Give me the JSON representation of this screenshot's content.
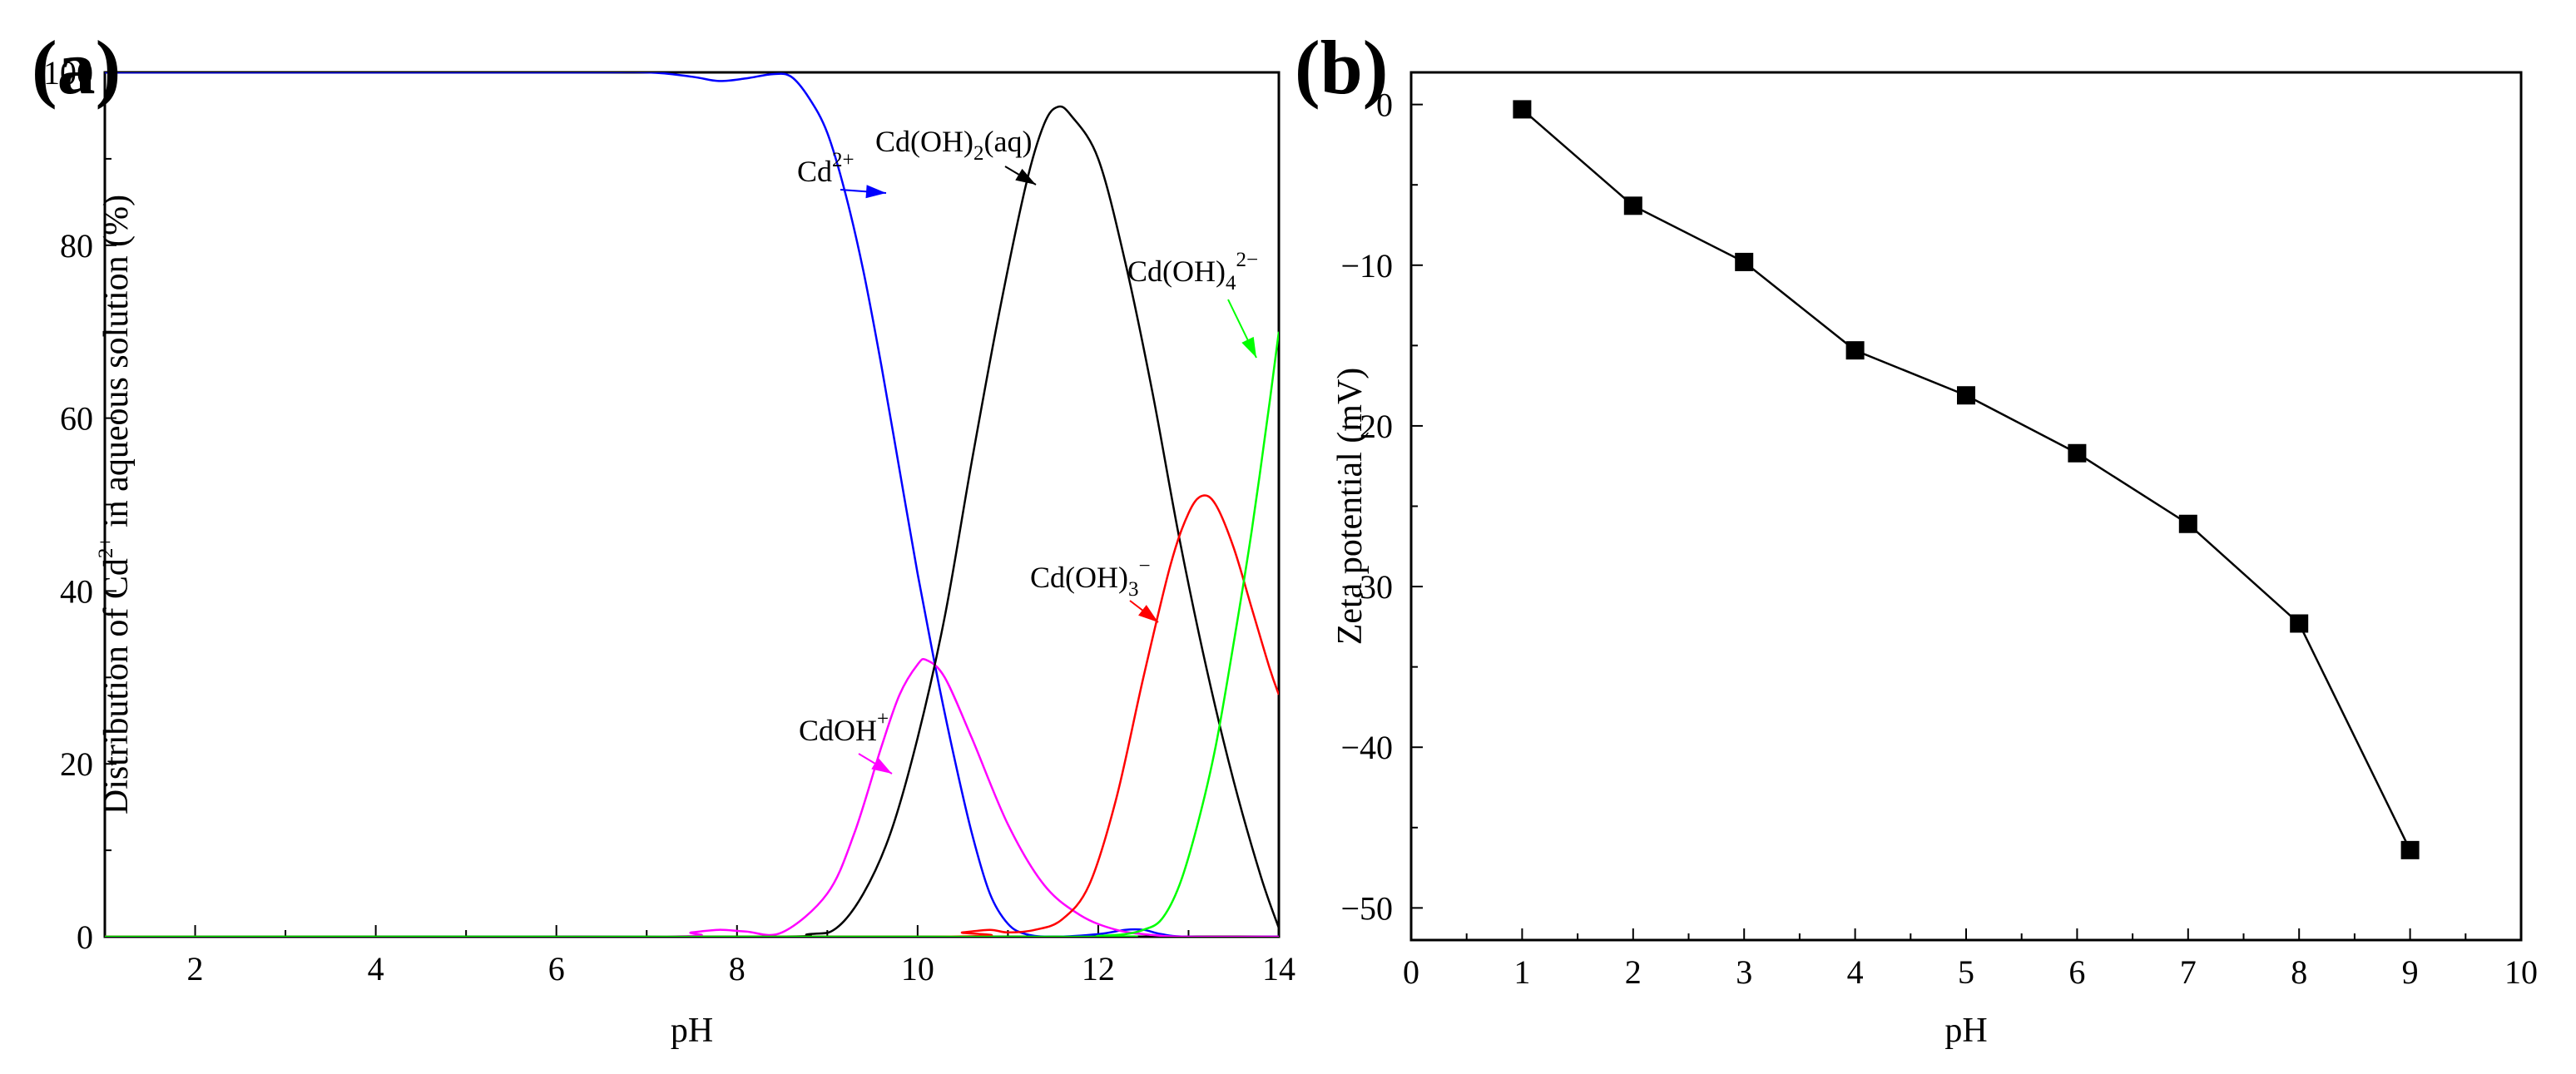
{
  "figure": {
    "panels": [
      "(a)",
      "(b)"
    ]
  },
  "chart_data": [
    {
      "type": "line",
      "panel": "(a)",
      "xlabel": "pH",
      "ylabel": {
        "pre": "Distribution of Cd",
        "sup": "2+",
        "post": " in aqueous solution (%)"
      },
      "xlim": [
        1,
        14
      ],
      "ylim": [
        0,
        100
      ],
      "xticks": [
        2,
        4,
        6,
        8,
        10,
        12,
        14
      ],
      "yticks": [
        0,
        20,
        40,
        60,
        80,
        100
      ],
      "series": [
        {
          "name": "Cd2+",
          "label_base": "Cd",
          "label_sup": "2+",
          "color": "#0000ff",
          "x": [
            1,
            6,
            7,
            7.5,
            7.8,
            8.1,
            8.4,
            8.6,
            8.8,
            9,
            9.2,
            9.4,
            9.6,
            9.8,
            10,
            10.2,
            10.4,
            10.6,
            10.8,
            11,
            11.2,
            11.5,
            12,
            12.3,
            12.5,
            12.7,
            13,
            14
          ],
          "y": [
            100,
            100,
            100,
            99.5,
            99,
            99.3,
            99.8,
            99.5,
            97,
            93,
            86,
            77,
            66,
            54,
            42,
            31,
            21,
            12,
            5,
            1.5,
            0.3,
            0,
            0.3,
            0.8,
            0.8,
            0.3,
            0,
            0
          ]
        },
        {
          "name": "CdOH+",
          "label_base": "CdOH",
          "label_sup": "+",
          "color": "#ff00ff",
          "x": [
            1,
            7,
            7.5,
            7.8,
            8.1,
            8.5,
            9,
            9.3,
            9.6,
            9.8,
            10,
            10.1,
            10.3,
            10.6,
            11,
            11.4,
            11.8,
            12.2,
            12.6,
            13,
            14
          ],
          "y": [
            0,
            0,
            0.5,
            0.8,
            0.6,
            0.5,
            5,
            12,
            22,
            28,
            31.5,
            32,
            30,
            23,
            13,
            6,
            2.5,
            0.8,
            0.2,
            0,
            0
          ]
        },
        {
          "name": "Cd(OH)2(aq)",
          "label_base": "Cd(OH)",
          "label_sub": "2",
          "label_post": "(aq)",
          "color": "#000000",
          "x": [
            1,
            8,
            8.8,
            9.1,
            9.4,
            9.7,
            10,
            10.3,
            10.6,
            10.9,
            11.2,
            11.4,
            11.55,
            11.7,
            12,
            12.3,
            12.6,
            12.9,
            13.2,
            13.5,
            13.8,
            14
          ],
          "y": [
            0,
            0,
            0.3,
            1,
            5,
            12,
            23,
            37,
            55,
            72,
            87,
            94,
            96,
            95,
            90,
            78,
            63,
            46,
            31,
            18,
            7,
            1
          ]
        },
        {
          "name": "Cd(OH)3-",
          "label_base": "Cd(OH)",
          "label_sub": "3",
          "label_sup": "−",
          "color": "#ff0000",
          "x": [
            1,
            10,
            10.5,
            10.8,
            11,
            11.3,
            11.6,
            11.9,
            12.2,
            12.5,
            12.8,
            13,
            13.15,
            13.3,
            13.5,
            13.7,
            13.9,
            14
          ],
          "y": [
            0,
            0,
            0.5,
            0.8,
            0.5,
            0.8,
            2,
            6,
            16,
            30,
            43,
            49,
            51,
            50,
            45,
            38,
            31,
            28
          ]
        },
        {
          "name": "Cd(OH)4 2-",
          "label_base": "Cd(OH)",
          "label_sub": "4",
          "label_sup": "2−",
          "color": "#00ff00",
          "x": [
            1,
            11.5,
            12,
            12.3,
            12.5,
            12.7,
            12.9,
            13.1,
            13.3,
            13.5,
            13.7,
            13.9,
            14
          ],
          "y": [
            0,
            0,
            0.1,
            0.3,
            0.8,
            2,
            6,
            13,
            22,
            34,
            47,
            62,
            70
          ]
        }
      ]
    },
    {
      "type": "line",
      "panel": "(b)",
      "marker": "square",
      "xlabel": "pH",
      "ylabel": "Zeta potential (mV)",
      "xlim": [
        0,
        10
      ],
      "ylim": [
        -52,
        2
      ],
      "xticks": [
        0,
        1,
        2,
        3,
        4,
        5,
        6,
        7,
        8,
        9,
        10
      ],
      "yticks": [
        0,
        -10,
        -20,
        -30,
        -40,
        -50
      ],
      "ytick_labels": [
        "0",
        "−10",
        "−20",
        "−30",
        "−40",
        "−50"
      ],
      "series": [
        {
          "name": "Zeta potential",
          "color": "#000000",
          "x": [
            1,
            2,
            3,
            4,
            5,
            6,
            7,
            8,
            9
          ],
          "y": [
            -0.3,
            -6.3,
            -9.8,
            -15.3,
            -18.1,
            -21.7,
            -26.1,
            -32.3,
            -46.4
          ]
        }
      ]
    }
  ]
}
